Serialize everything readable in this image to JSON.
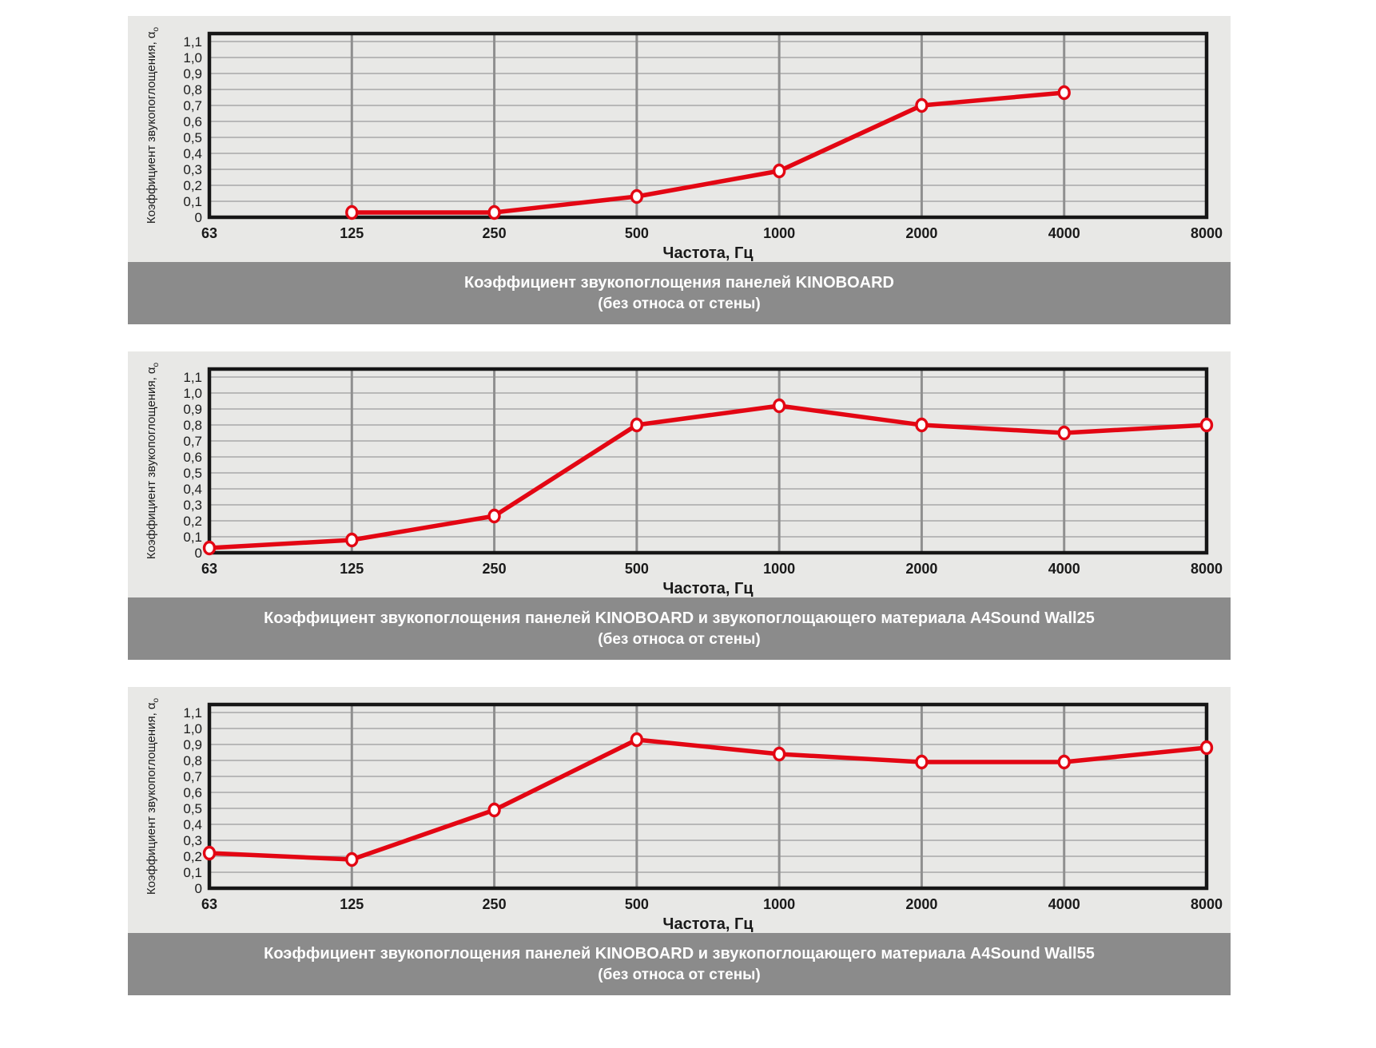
{
  "styles": {
    "accent_red": "#e30613",
    "panel_bg": "#e8e8e6",
    "grid_h_color": "#a8a8a8",
    "grid_v_color": "#8f8f8f",
    "frame_color": "#161616",
    "marker_fill": "#ffffff",
    "caption_bg": "#8b8b8b",
    "caption_text": "#ffffff",
    "tick_text_color": "#1a1a1a"
  },
  "axis": {
    "xlabel": "Частота, Гц",
    "ylabel_main": "Коэффициент звукопоглощения, α",
    "ylabel_sub": "o",
    "ylim": [
      0,
      1.15
    ],
    "yticks": [
      {
        "v": 0.0,
        "label": "0"
      },
      {
        "v": 0.1,
        "label": "0,1"
      },
      {
        "v": 0.2,
        "label": "0,2"
      },
      {
        "v": 0.3,
        "label": "0,3"
      },
      {
        "v": 0.4,
        "label": "0,4"
      },
      {
        "v": 0.5,
        "label": "0,5"
      },
      {
        "v": 0.6,
        "label": "0,6"
      },
      {
        "v": 0.7,
        "label": "0,7"
      },
      {
        "v": 0.8,
        "label": "0,8"
      },
      {
        "v": 0.9,
        "label": "0,9"
      },
      {
        "v": 1.0,
        "label": "1,0"
      },
      {
        "v": 1.1,
        "label": "1,1"
      }
    ],
    "x_categories": [
      "63",
      "125",
      "250",
      "500",
      "1000",
      "2000",
      "4000",
      "8000"
    ],
    "grid": "on",
    "legend": "none"
  },
  "chart_data": [
    {
      "type": "line",
      "title": "Коэффициент звукопоглощения панелей KINOBOARD",
      "subtitle": "(без относа от стены)",
      "x": [
        63,
        125,
        250,
        500,
        1000,
        2000,
        4000,
        8000
      ],
      "values": [
        null,
        0.03,
        0.03,
        0.13,
        0.29,
        0.7,
        0.78,
        null
      ],
      "xlabel": "Частота, Гц",
      "ylabel": "Коэффициент звукопоглощения, αo",
      "ylim": [
        0,
        1.15
      ]
    },
    {
      "type": "line",
      "title": "Коэффициент звукопоглощения панелей KINOBOARD и звукопоглощающего материала  A4Sound Wall25",
      "subtitle": "(без относа от стены)",
      "x": [
        63,
        125,
        250,
        500,
        1000,
        2000,
        4000,
        8000
      ],
      "values": [
        0.03,
        0.08,
        0.23,
        0.8,
        0.92,
        0.8,
        0.75,
        0.8
      ],
      "xlabel": "Частота, Гц",
      "ylabel": "Коэффициент звукопоглощения, αo",
      "ylim": [
        0,
        1.15
      ]
    },
    {
      "type": "line",
      "title": "Коэффициент звукопоглощения панелей KINOBOARD и звукопоглощающего материала  A4Sound Wall55",
      "subtitle": "(без относа от стены)",
      "x": [
        63,
        125,
        250,
        500,
        1000,
        2000,
        4000,
        8000
      ],
      "values": [
        0.22,
        0.18,
        0.49,
        0.93,
        0.84,
        0.79,
        0.79,
        0.88
      ],
      "xlabel": "Частота, Гц",
      "ylabel": "Коэффициент звукопоглощения, αo",
      "ylim": [
        0,
        1.15
      ]
    }
  ]
}
